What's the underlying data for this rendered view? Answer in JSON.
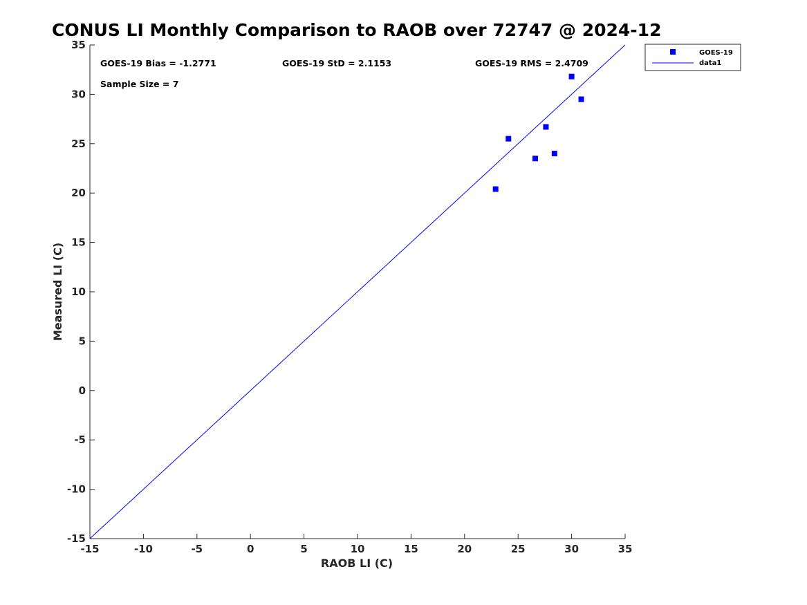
{
  "chart_data": {
    "type": "scatter",
    "title": "CONUS LI Monthly Comparison to RAOB over 72747 @ 2024-12",
    "xlabel": "RAOB LI (C)",
    "ylabel": "Measured LI (C)",
    "xlim": [
      -15,
      35
    ],
    "ylim": [
      -15,
      35
    ],
    "xticks": [
      -15,
      -10,
      -5,
      0,
      5,
      10,
      15,
      20,
      25,
      30,
      35
    ],
    "yticks": [
      -15,
      -10,
      -5,
      0,
      5,
      10,
      15,
      20,
      25,
      30,
      35
    ],
    "grid": false,
    "legend_position": "top-right outside",
    "series": [
      {
        "name": "GOES-19",
        "kind": "scatter",
        "marker": "square",
        "color": "#0000ff",
        "x": [
          22.9,
          24.1,
          26.6,
          27.6,
          28.4,
          30.0,
          30.9
        ],
        "y": [
          20.4,
          25.5,
          23.5,
          26.7,
          24.0,
          31.8,
          29.5
        ]
      },
      {
        "name": "data1",
        "kind": "line",
        "color": "#0000ff",
        "x": [
          -15,
          35
        ],
        "y": [
          -15,
          35
        ]
      }
    ],
    "annotations": {
      "bias": "GOES-19 Bias = -1.2771",
      "std": "GOES-19 StD = 2.1153",
      "rms": "GOES-19 RMS = 2.4709",
      "sample_size": "Sample Size = 7"
    }
  }
}
